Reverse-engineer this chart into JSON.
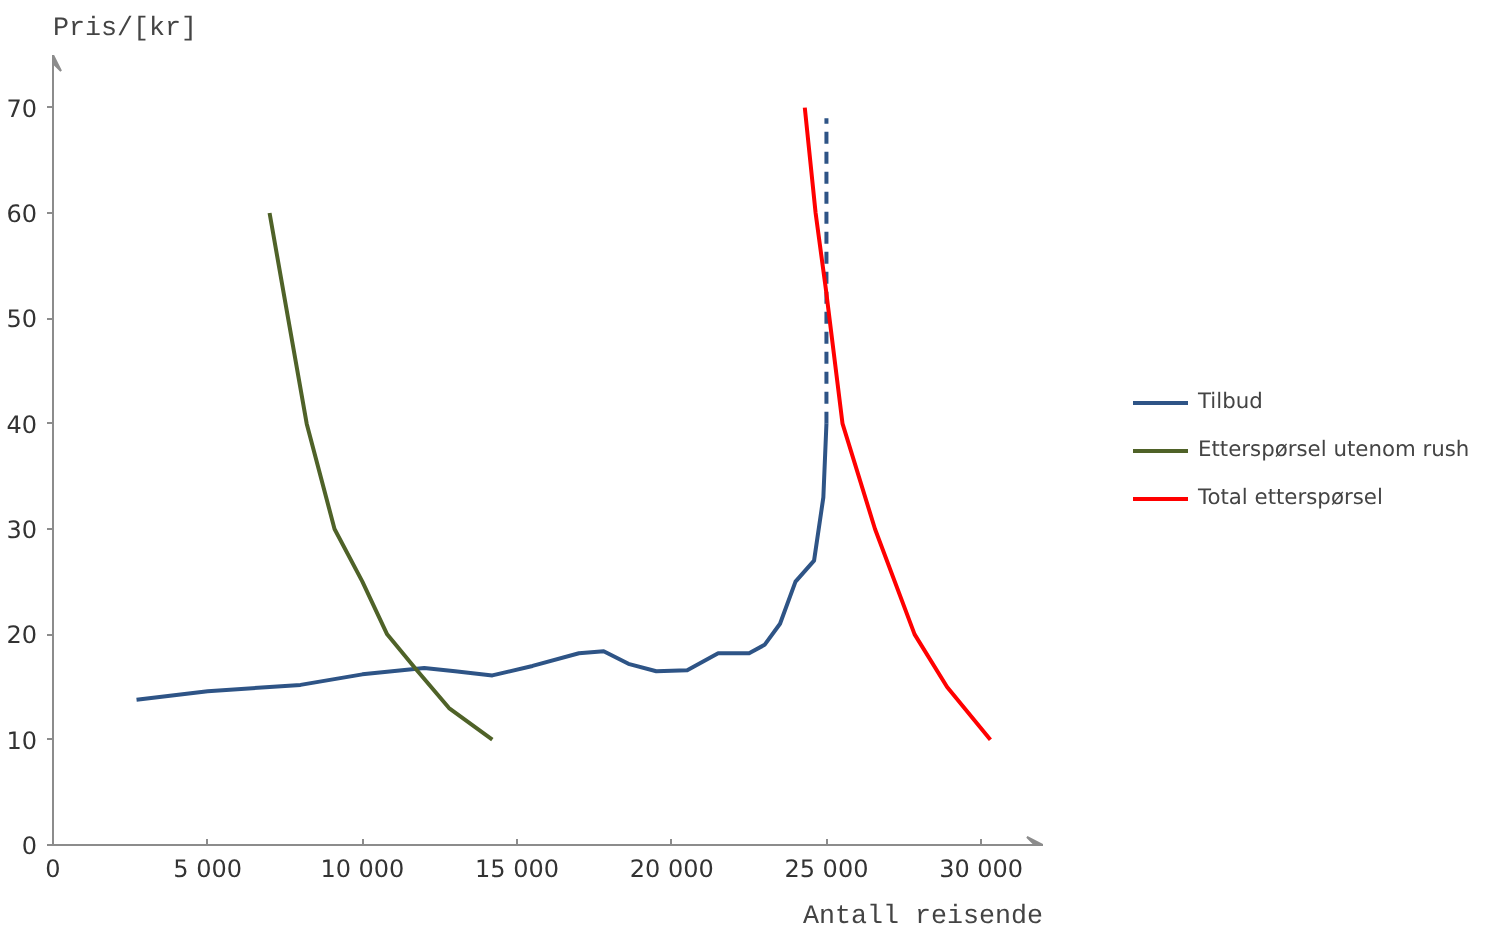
{
  "chart_data": {
    "type": "line",
    "xlabel": "Antall reisende",
    "ylabel": "Pris/[kr]",
    "xlim": [
      0,
      32000
    ],
    "ylim": [
      0,
      75
    ],
    "xticks": [
      0,
      {
        "value": 5000,
        "label": "5 000"
      },
      {
        "value": 10000,
        "label": "10 000"
      },
      {
        "value": 15000,
        "label": "15 000"
      },
      {
        "value": 20000,
        "label": "20 000"
      },
      {
        "value": 25000,
        "label": "25 000"
      },
      {
        "value": 30000,
        "label": "30 000"
      }
    ],
    "yticks": [
      0,
      10,
      20,
      30,
      40,
      50,
      60,
      70
    ],
    "grid": false,
    "legend": "right",
    "marker": "none",
    "series": [
      {
        "name": "Tilbud",
        "color": "#2e5486",
        "line_style": "solid",
        "x": [
          2700,
          5000,
          7000,
          8000,
          10000,
          12000,
          13000,
          14200,
          15500,
          17000,
          17800,
          18600,
          19500,
          20500,
          21500,
          22500,
          23000,
          23500,
          24000,
          24600,
          24900,
          25000
        ],
        "values": [
          13.8,
          14.6,
          15,
          15.2,
          16.2,
          16.8,
          16.5,
          16.1,
          17,
          18.2,
          18.4,
          17.2,
          16.5,
          16.6,
          18.2,
          18.2,
          19,
          21,
          25,
          27,
          33,
          40
        ]
      },
      {
        "color": "#2e5486",
        "line_style": "dashed",
        "x": [
          25000,
          25000
        ],
        "values": [
          40,
          69
        ]
      },
      {
        "name": "Etterspørsel utenom rush",
        "color": "#4f6228",
        "line_style": "solid",
        "x": [
          7000,
          7600,
          8200,
          9100,
          10000,
          10800,
          11700,
          12800,
          14200
        ],
        "values": [
          60,
          50,
          40,
          30,
          25,
          20,
          16.8,
          13,
          10
        ]
      },
      {
        "name": "Total etterspørsel",
        "color": "#ff0000",
        "line_style": "solid",
        "x": [
          24300,
          24650,
          24980,
          25520,
          26570,
          27850,
          28900,
          30300
        ],
        "values": [
          70,
          60,
          52.8,
          40,
          30,
          20,
          15,
          10
        ]
      }
    ]
  }
}
